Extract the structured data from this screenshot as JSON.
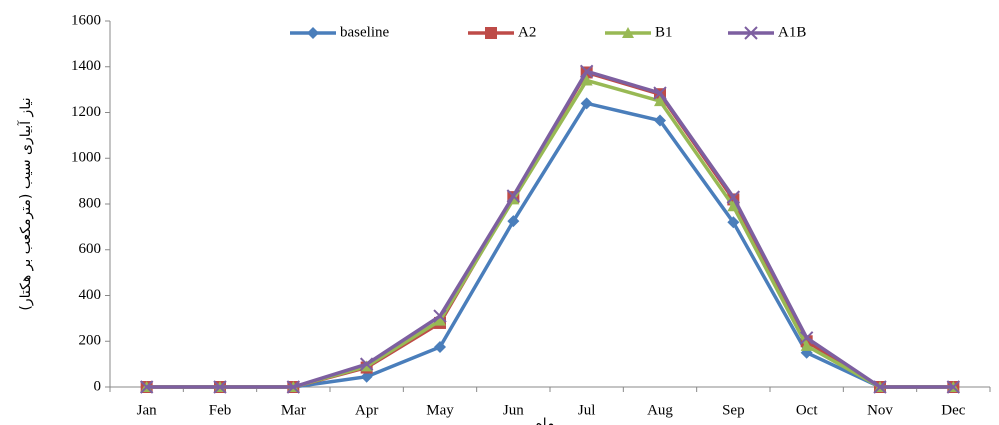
{
  "chart_data": {
    "type": "line",
    "x_label": "ماه",
    "y_label": "نیاز آبیاری سیب (مترمکعب بر هکتار)",
    "categories": [
      "Jan",
      "Feb",
      "Mar",
      "Apr",
      "May",
      "Jun",
      "Jul",
      "Aug",
      "Sep",
      "Oct",
      "Nov",
      "Dec"
    ],
    "series": [
      {
        "name": "baseline",
        "color": "#4a7ebb",
        "marker": "diamond",
        "values": [
          0,
          0,
          0,
          45,
          175,
          725,
          1240,
          1165,
          720,
          150,
          0,
          0
        ]
      },
      {
        "name": "A2",
        "color": "#be4b48",
        "marker": "square",
        "values": [
          0,
          0,
          0,
          85,
          280,
          830,
          1375,
          1280,
          820,
          200,
          0,
          0
        ]
      },
      {
        "name": "B1",
        "color": "#98b954",
        "marker": "triangle",
        "values": [
          0,
          0,
          0,
          90,
          290,
          820,
          1340,
          1250,
          790,
          180,
          0,
          0
        ]
      },
      {
        "name": "A1B",
        "color": "#7d5fa0",
        "marker": "x",
        "values": [
          0,
          0,
          0,
          100,
          310,
          835,
          1380,
          1285,
          830,
          215,
          0,
          0
        ]
      }
    ],
    "ylim": [
      0,
      1600
    ],
    "yticks": [
      0,
      200,
      400,
      600,
      800,
      1000,
      1200,
      1400,
      1600
    ],
    "grid": false,
    "legend": "top"
  }
}
